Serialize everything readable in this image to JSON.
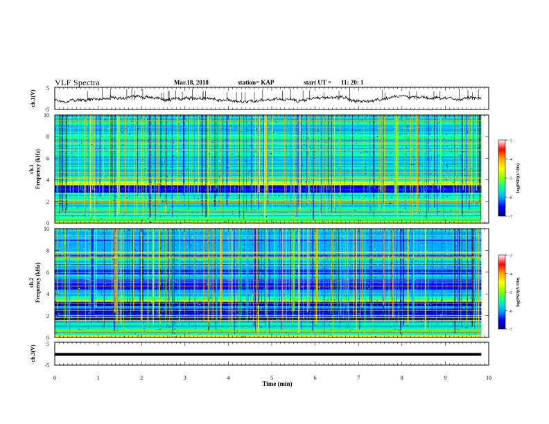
{
  "header": {
    "title": "VLF Spectra",
    "date": "Mar.18, 2018",
    "station": "station= KAP",
    "start_label": "start  UT  =",
    "start_time": "11: 20: 1"
  },
  "chart_data": [
    {
      "type": "line",
      "name": "ch1-waveform",
      "ylabel": "ch.1(V)",
      "ylim": [
        -5,
        5
      ],
      "yticks": [
        "5",
        "-5"
      ],
      "xlim": [
        0,
        10
      ],
      "x_data_extent": [
        0,
        9.83
      ],
      "series": [
        {
          "values_description_only": false,
          "values_range": [
            -2,
            1.5
          ]
        }
      ]
    },
    {
      "type": "heatmap",
      "name": "ch1-spectrogram",
      "ylabel": "Frequency (kHz)",
      "ylabel_channel": "ch.1",
      "ylim": [
        0,
        10
      ],
      "yticks": [
        "0",
        "2",
        "4",
        "6",
        "8",
        "10"
      ],
      "xlim": [
        0,
        10
      ],
      "x_data_extent": [
        0,
        9.83
      ],
      "colorbar": {
        "label": "log(PSD)(V²/Hz)",
        "range": [
          -7,
          -3
        ],
        "ticks": [
          "-3",
          "-4",
          "-5",
          "-6",
          "-7"
        ],
        "colors": [
          "#000080",
          "#0000ff",
          "#00aaff",
          "#00ffaa",
          "#88ff00",
          "#ffff00",
          "#ffaa00",
          "#ff0000",
          "#ffffff"
        ]
      },
      "bands_khz": [
        {
          "from": 0.0,
          "to": 0.25,
          "level": -4.5
        },
        {
          "from": 0.25,
          "to": 1.0,
          "level": -5.2
        },
        {
          "from": 1.0,
          "to": 2.0,
          "level": -5.5
        },
        {
          "from": 2.0,
          "to": 2.15,
          "level": -4.2
        },
        {
          "from": 2.15,
          "to": 2.9,
          "level": -5.4
        },
        {
          "from": 2.9,
          "to": 3.6,
          "level": -6.4
        },
        {
          "from": 3.6,
          "to": 3.9,
          "level": -4.4
        },
        {
          "from": 3.9,
          "to": 10.0,
          "level": -5.6
        }
      ]
    },
    {
      "type": "heatmap",
      "name": "ch2-spectrogram",
      "ylabel": "Frequency (kHz)",
      "ylabel_channel": "ch.2",
      "ylim": [
        0,
        10
      ],
      "yticks": [
        "0",
        "2",
        "4",
        "6",
        "8",
        "10"
      ],
      "xlim": [
        0,
        10
      ],
      "x_data_extent": [
        0,
        9.83
      ],
      "colorbar": {
        "label": "log(PSD)(V²/Hz)",
        "range": [
          -7,
          -3
        ],
        "ticks": [
          "-3",
          "-4",
          "-5",
          "-6",
          "-7"
        ],
        "colors": [
          "#000080",
          "#0000ff",
          "#00aaff",
          "#00ffaa",
          "#88ff00",
          "#ffff00",
          "#ffaa00",
          "#ff0000",
          "#ffffff"
        ]
      },
      "bands_khz": [
        {
          "from": 0.0,
          "to": 0.25,
          "level": -4.6
        },
        {
          "from": 0.25,
          "to": 1.5,
          "level": -5.6
        },
        {
          "from": 1.5,
          "to": 2.9,
          "level": -6.1
        },
        {
          "from": 2.9,
          "to": 3.3,
          "level": -6.5
        },
        {
          "from": 3.3,
          "to": 3.5,
          "level": -4.4
        },
        {
          "from": 3.5,
          "to": 10.0,
          "level": -5.8
        }
      ]
    },
    {
      "type": "line",
      "name": "ch3-waveform",
      "ylabel": "ch.3(V)",
      "ylim": [
        -5,
        5
      ],
      "yticks": [
        "5",
        "-5"
      ],
      "xlim": [
        0,
        10
      ],
      "x_data_extent": [
        0,
        9.83
      ],
      "series": [
        {
          "constant_value": 0
        }
      ]
    }
  ],
  "x_axis": {
    "label": "Time (min)",
    "ticks": [
      "0",
      "1",
      "2",
      "3",
      "4",
      "5",
      "6",
      "7",
      "8",
      "9",
      "10"
    ]
  }
}
